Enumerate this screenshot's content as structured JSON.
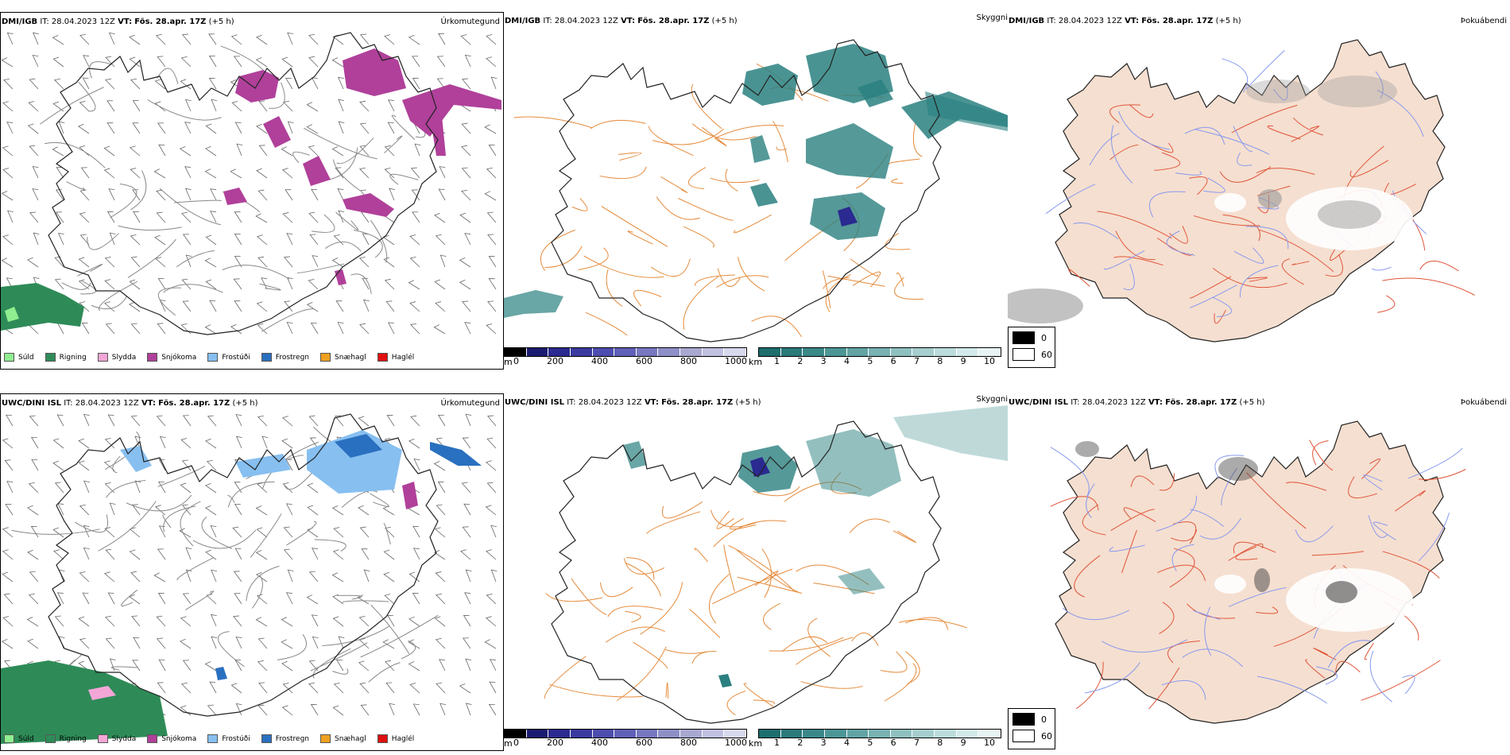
{
  "rows": [
    {
      "model": "DMI/IGB",
      "init_label": "IT:",
      "init_time": "28.04.2023 12Z",
      "valid_label": "VT:",
      "valid_time": "Fös. 28.apr. 17Z",
      "lead": "(+5 h)"
    },
    {
      "model": "UWC/DINI ISL",
      "init_label": "IT:",
      "init_time": "28.04.2023 12Z",
      "valid_label": "VT:",
      "valid_time": "Fös. 28.apr. 17Z",
      "lead": "(+5 h)"
    }
  ],
  "panels": {
    "precip_type": {
      "title": "Úrkomutegund",
      "legend": [
        {
          "label": "Súld",
          "color": "#90ee90"
        },
        {
          "label": "Rigning",
          "color": "#2e8b57"
        },
        {
          "label": "Slydda",
          "color": "#f4a6d7"
        },
        {
          "label": "Snjókoma",
          "color": "#b0409a"
        },
        {
          "label": "Frostúði",
          "color": "#87bff0"
        },
        {
          "label": "Frostregn",
          "color": "#2a70c0"
        },
        {
          "label": "Snæhagl",
          "color": "#f0a020"
        },
        {
          "label": "Haglél",
          "color": "#e01010"
        }
      ]
    },
    "ceiling": {
      "title": "Skyggni",
      "ceiling_unit": "m",
      "ceiling_ticks": [
        "0",
        "200",
        "400",
        "600",
        "800",
        "1000"
      ],
      "ceiling_colors": [
        "#000000",
        "#1a1a70",
        "#2a2a90",
        "#3a3aa0",
        "#4d4db0",
        "#6060b8",
        "#7777c0",
        "#8f8fc8",
        "#a8a8d0",
        "#c0c0e0",
        "#d8d8ee"
      ],
      "vis_unit": "km",
      "vis_ticks": [
        "1",
        "2",
        "3",
        "4",
        "5",
        "6",
        "7",
        "8",
        "9",
        "10"
      ],
      "vis_colors": [
        "#1e6e6e",
        "#2a7a7a",
        "#3a8888",
        "#4d9696",
        "#62a4a4",
        "#78b2b2",
        "#8fc0c0",
        "#a6cece",
        "#bcdcdc",
        "#d2eaea",
        "#e8f4f4"
      ]
    },
    "fog": {
      "title": "Þokuábendi",
      "legend": [
        {
          "label": "0",
          "color": "#000000"
        },
        {
          "label": "60",
          "color": "#ffffff"
        }
      ]
    }
  },
  "colors": {
    "snow": "#b0409a",
    "rain": "#2e8b57",
    "drizzle": "#90ee90",
    "freezing_drizzle": "#87bff0",
    "freezing_rain": "#2a70c0",
    "teal": "#2a8080",
    "land_fog": "#f5dfd0",
    "roads_orange": "#e58a3a",
    "roads_red": "#e0553a"
  }
}
